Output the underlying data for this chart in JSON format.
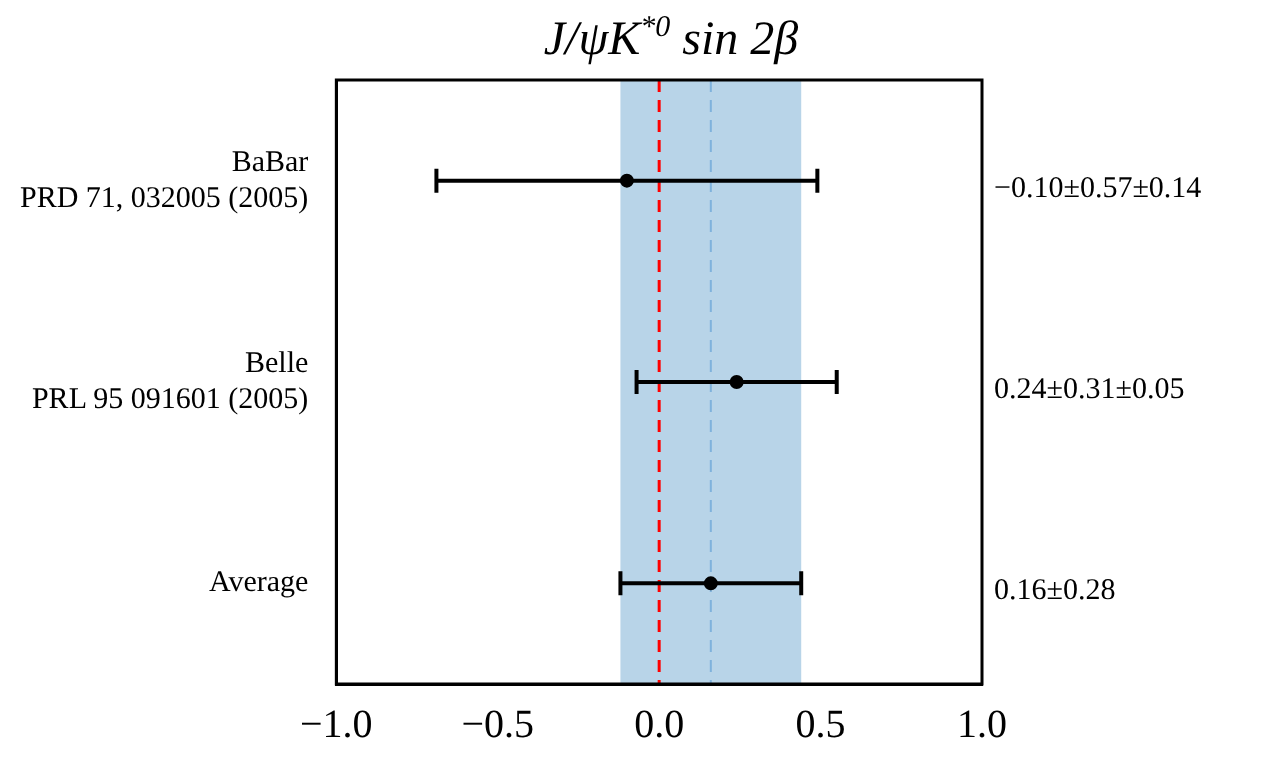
{
  "chart_data": {
    "type": "scatter",
    "orientation": "horizontal",
    "title": "J/ψK$^{*0}$ sin 2β",
    "categories": [
      "BaBar\nPRD 71, 032005 (2005)",
      "Belle\nPRL 95 091601 (2005)",
      "Average"
    ],
    "values": [
      -0.1,
      0.24,
      0.16
    ],
    "errors": [
      0.59,
      0.31,
      0.28
    ],
    "annotations": [
      "−0.10±0.57±0.14",
      "0.24±0.31±0.05",
      "0.16±0.28"
    ],
    "color": "#000000",
    "marker": "circle",
    "xlim": [
      -1,
      1
    ],
    "xticks": [
      {
        "value": -1,
        "label": "−1.0"
      },
      {
        "value": -0.5,
        "label": "−0.5"
      },
      {
        "value": 0,
        "label": "0.0"
      },
      {
        "value": 0.5,
        "label": "0.5"
      },
      {
        "value": 1,
        "label": "1.0"
      }
    ],
    "bands": [
      {
        "axis": "x",
        "from": -0.12,
        "to": 0.44,
        "color": "#b8d4e8"
      }
    ],
    "ref_lines": [
      {
        "axis": "x",
        "value": 0,
        "color": "#ff0000",
        "line_style": "dashed"
      },
      {
        "axis": "x",
        "value": 0.16,
        "color": "#7fb2dc",
        "line_style": "dashed"
      }
    ],
    "grid": false,
    "legend": false
  }
}
